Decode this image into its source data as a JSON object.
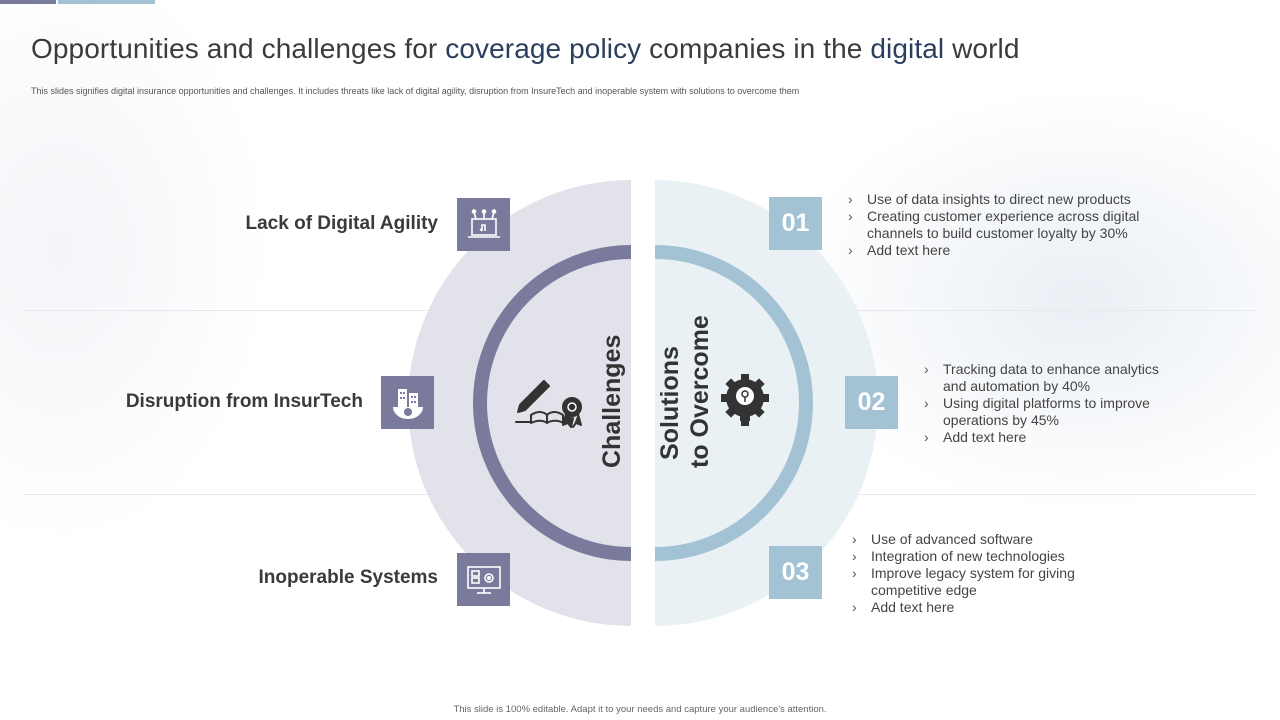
{
  "header": {
    "title_before": "Opportunities and challenges for ",
    "title_hl1": "coverage policy",
    "title_mid": " companies in the ",
    "title_hl2": "digital",
    "title_after": " world",
    "subtitle": "This slides signifies digital insurance opportunities and challenges. It includes threats like lack of digital agility, disruption from InsureTech and inoperable system with solutions to overcome them"
  },
  "center": {
    "challenges_label": "Challenges",
    "solutions_line1": "Solutions",
    "solutions_line2": "to Overcome"
  },
  "challenges": [
    {
      "label": "Lack of Digital Agility",
      "icon": "laptop-icon"
    },
    {
      "label": "Disruption from InsurTech",
      "icon": "city-gear-icon"
    },
    {
      "label": "Inoperable Systems",
      "icon": "monitor-settings-icon"
    }
  ],
  "solutions": [
    {
      "number": "01",
      "bullets": [
        "Use of data insights to direct new products",
        "Creating  customer experience across digital channels to build customer loyalty by 30%",
        "Add text here"
      ]
    },
    {
      "number": "02",
      "bullets": [
        "Tracking data to enhance analytics and automation by 40%",
        "Using digital platforms to improve operations by 45%",
        "Add text here"
      ]
    },
    {
      "number": "03",
      "bullets": [
        "Use of advanced software",
        "Integration of new technologies",
        "Improve legacy system for giving competitive edge",
        "Add text here"
      ]
    }
  ],
  "footer": "This slide is 100% editable.  Adapt it to your needs and capture your audience's attention.",
  "colors": {
    "purple": "#7a7a9c",
    "blue": "#a3c2d3",
    "left_disc": "#e2e3ea",
    "right_disc": "#eaf1f5",
    "title_highlight": "#2c3e5e"
  }
}
